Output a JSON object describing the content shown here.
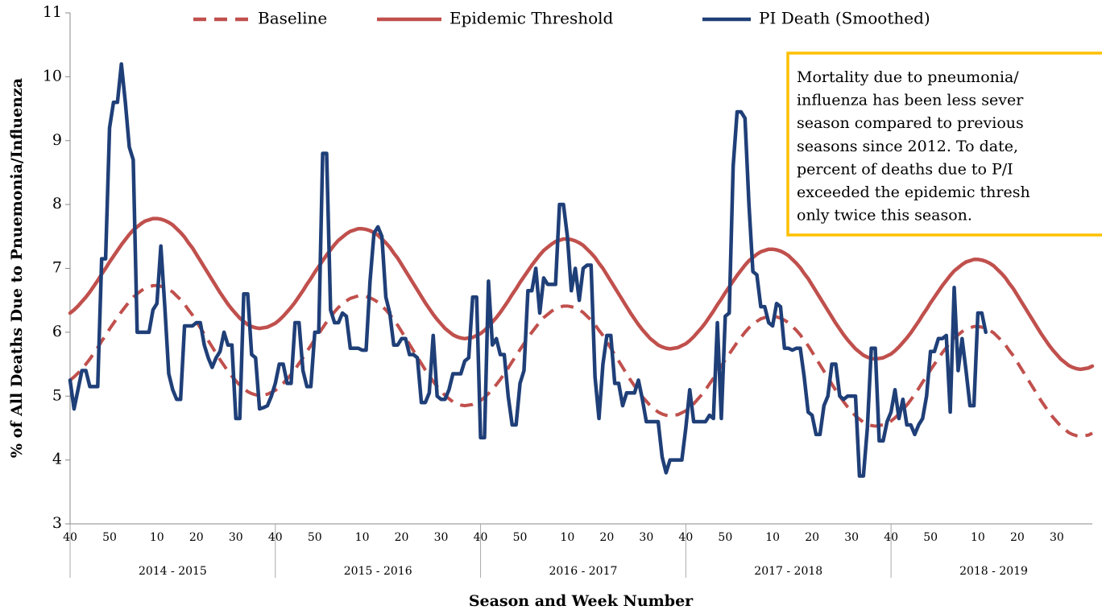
{
  "chart_data": {
    "type": "line",
    "x_label": "Season and Week Number",
    "y_label": "% of All Deaths Due to Pnuemonia/Influenza",
    "ylim": [
      3,
      11
    ],
    "yticks": [
      3,
      4,
      5,
      6,
      7,
      8,
      9,
      10,
      11
    ],
    "grid": false,
    "legend": "top",
    "annotation": [
      "Mortality due to pneumonia/",
      "influenza has been less sever",
      "season compared to previous",
      "seasons since 2012. To date,",
      "percent of deaths due to P/I",
      "exceeded the epidemic thresh",
      "only twice this season."
    ],
    "annotation_border": "#FFC000",
    "category_groups": [
      "2014 - 2015",
      "2015 - 2016",
      "2016 - 2017",
      "2017 - 2018",
      "2018 - 2019"
    ],
    "categories": [
      "40",
      null,
      null,
      null,
      null,
      null,
      null,
      null,
      null,
      null,
      "50",
      null,
      null,
      null,
      null,
      null,
      null,
      null,
      null,
      null,
      null,
      null,
      "10",
      null,
      null,
      null,
      null,
      null,
      null,
      null,
      null,
      null,
      "20",
      null,
      null,
      null,
      null,
      null,
      null,
      null,
      null,
      null,
      "30",
      null,
      null,
      null,
      null,
      null,
      null,
      null,
      null,
      null,
      "40",
      null,
      null,
      null,
      null,
      null,
      null,
      null,
      null,
      null,
      "50",
      null,
      null,
      null,
      null,
      null,
      null,
      null,
      null,
      null,
      null,
      null,
      "10",
      null,
      null,
      null,
      null,
      null,
      null,
      null,
      null,
      null,
      "20",
      null,
      null,
      null,
      null,
      null,
      null,
      null,
      null,
      null,
      "30",
      null,
      null,
      null,
      null,
      null,
      null,
      null,
      null,
      null,
      "40",
      null,
      null,
      null,
      null,
      null,
      null,
      null,
      null,
      null,
      "50",
      null,
      null,
      null,
      null,
      null,
      null,
      null,
      null,
      null,
      null,
      null,
      "10",
      null,
      null,
      null,
      null,
      null,
      null,
      null,
      null,
      null,
      "20",
      null,
      null,
      null,
      null,
      null,
      null,
      null,
      null,
      null,
      "30",
      null,
      null,
      null,
      null,
      null,
      null,
      null,
      null,
      null,
      "40",
      null,
      null,
      null,
      null,
      null,
      null,
      null,
      null,
      null,
      "50",
      null,
      null,
      null,
      null,
      null,
      null,
      null,
      null,
      null,
      null,
      null,
      "10",
      null,
      null,
      null,
      null,
      null,
      null,
      null,
      null,
      null,
      "20",
      null,
      null,
      null,
      null,
      null,
      null,
      null,
      null,
      null,
      "30",
      null,
      null,
      null,
      null,
      null,
      null,
      null,
      null,
      null,
      "40",
      null,
      null,
      null,
      null,
      null,
      null,
      null,
      null,
      null,
      "50",
      null,
      null,
      null,
      null,
      null,
      null,
      null,
      null,
      null,
      null,
      null,
      "10",
      null,
      null,
      null,
      null,
      null,
      null,
      null,
      null,
      null,
      "20",
      null,
      null,
      null,
      null,
      null,
      null,
      null,
      null,
      null,
      "30",
      null,
      null,
      null,
      null,
      null,
      null,
      null,
      null,
      null
    ],
    "series": [
      {
        "name": "Baseline",
        "color": "#C0504D",
        "dashed": true,
        "values": [
          5.25,
          5.3,
          5.36,
          5.43,
          5.5,
          5.58,
          5.67,
          5.76,
          5.86,
          5.95,
          6.05,
          6.14,
          6.23,
          6.32,
          6.4,
          6.48,
          6.55,
          6.6,
          6.65,
          6.69,
          6.71,
          6.73,
          6.73,
          6.72,
          6.7,
          6.67,
          6.63,
          6.57,
          6.51,
          6.44,
          6.35,
          6.27,
          6.17,
          6.07,
          5.97,
          5.87,
          5.77,
          5.67,
          5.57,
          5.48,
          5.39,
          5.31,
          5.24,
          5.17,
          5.12,
          5.07,
          5.04,
          5.02,
          5.01,
          5.02,
          5.03,
          5.06,
          5.09,
          5.14,
          5.2,
          5.27,
          5.34,
          5.42,
          5.51,
          5.6,
          5.7,
          5.79,
          5.89,
          5.98,
          6.07,
          6.16,
          6.24,
          6.32,
          6.39,
          6.44,
          6.49,
          6.53,
          6.55,
          6.57,
          6.57,
          6.56,
          6.54,
          6.51,
          6.47,
          6.41,
          6.35,
          6.28,
          6.19,
          6.11,
          6.01,
          5.91,
          5.81,
          5.71,
          5.61,
          5.51,
          5.41,
          5.32,
          5.23,
          5.15,
          5.08,
          5.01,
          4.96,
          4.91,
          4.88,
          4.86,
          4.85,
          4.86,
          4.87,
          4.9,
          4.93,
          4.98,
          5.04,
          5.11,
          5.18,
          5.26,
          5.35,
          5.44,
          5.54,
          5.63,
          5.73,
          5.82,
          5.91,
          6.0,
          6.08,
          6.16,
          6.23,
          6.28,
          6.33,
          6.37,
          6.39,
          6.41,
          6.41,
          6.4,
          6.38,
          6.35,
          6.31,
          6.25,
          6.19,
          6.12,
          6.03,
          5.95,
          5.85,
          5.75,
          5.65,
          5.55,
          5.45,
          5.35,
          5.25,
          5.16,
          5.07,
          4.99,
          4.92,
          4.85,
          4.8,
          4.75,
          4.72,
          4.7,
          4.69,
          4.7,
          4.71,
          4.74,
          4.77,
          4.82,
          4.88,
          4.95,
          5.02,
          5.1,
          5.19,
          5.28,
          5.38,
          5.47,
          5.57,
          5.66,
          5.75,
          5.84,
          5.92,
          6.0,
          6.07,
          6.12,
          6.17,
          6.21,
          6.23,
          6.25,
          6.25,
          6.24,
          6.22,
          6.19,
          6.15,
          6.09,
          6.03,
          5.96,
          5.87,
          5.79,
          5.69,
          5.59,
          5.49,
          5.39,
          5.29,
          5.19,
          5.09,
          5.0,
          4.91,
          4.83,
          4.76,
          4.69,
          4.64,
          4.59,
          4.56,
          4.54,
          4.53,
          4.54,
          4.55,
          4.58,
          4.61,
          4.66,
          4.72,
          4.79,
          4.86,
          4.94,
          5.03,
          5.12,
          5.22,
          5.31,
          5.41,
          5.5,
          5.59,
          5.68,
          5.76,
          5.84,
          5.91,
          5.96,
          6.01,
          6.05,
          6.07,
          6.09,
          6.09,
          6.08,
          6.06,
          6.03,
          5.99,
          5.93,
          5.87,
          5.8,
          5.71,
          5.63,
          5.53,
          5.43,
          5.33,
          5.23,
          5.13,
          5.03,
          4.93,
          4.84,
          4.75,
          4.67,
          4.6,
          4.53,
          4.48,
          4.43,
          4.4,
          4.38,
          4.37,
          4.38,
          4.39,
          4.42
        ]
      },
      {
        "name": "Epidemic Threshold",
        "color": "#C0504D",
        "dashed": false,
        "values": [
          6.3,
          6.35,
          6.41,
          6.48,
          6.55,
          6.63,
          6.72,
          6.81,
          6.91,
          7.0,
          7.1,
          7.19,
          7.28,
          7.37,
          7.45,
          7.53,
          7.6,
          7.65,
          7.7,
          7.74,
          7.76,
          7.78,
          7.78,
          7.77,
          7.75,
          7.72,
          7.68,
          7.62,
          7.56,
          7.49,
          7.4,
          7.32,
          7.22,
          7.12,
          7.02,
          6.92,
          6.82,
          6.72,
          6.62,
          6.53,
          6.44,
          6.36,
          6.29,
          6.22,
          6.17,
          6.12,
          6.09,
          6.07,
          6.06,
          6.07,
          6.08,
          6.11,
          6.14,
          6.19,
          6.25,
          6.32,
          6.39,
          6.47,
          6.56,
          6.65,
          6.75,
          6.84,
          6.94,
          7.03,
          7.12,
          7.21,
          7.29,
          7.37,
          7.44,
          7.49,
          7.54,
          7.58,
          7.6,
          7.62,
          7.62,
          7.61,
          7.59,
          7.56,
          7.52,
          7.46,
          7.4,
          7.33,
          7.24,
          7.16,
          7.06,
          6.96,
          6.86,
          6.76,
          6.66,
          6.56,
          6.46,
          6.37,
          6.28,
          6.2,
          6.13,
          6.06,
          6.01,
          5.96,
          5.93,
          5.91,
          5.9,
          5.91,
          5.92,
          5.95,
          5.98,
          6.03,
          6.09,
          6.16,
          6.23,
          6.31,
          6.4,
          6.49,
          6.59,
          6.68,
          6.78,
          6.87,
          6.96,
          7.05,
          7.13,
          7.21,
          7.28,
          7.33,
          7.38,
          7.42,
          7.44,
          7.46,
          7.46,
          7.45,
          7.43,
          7.4,
          7.36,
          7.3,
          7.24,
          7.17,
          7.08,
          7.0,
          6.9,
          6.8,
          6.7,
          6.6,
          6.5,
          6.4,
          6.3,
          6.21,
          6.12,
          6.04,
          5.97,
          5.9,
          5.85,
          5.8,
          5.77,
          5.75,
          5.74,
          5.75,
          5.76,
          5.79,
          5.82,
          5.87,
          5.93,
          6.0,
          6.07,
          6.15,
          6.24,
          6.33,
          6.43,
          6.52,
          6.62,
          6.71,
          6.8,
          6.89,
          6.97,
          7.05,
          7.12,
          7.17,
          7.22,
          7.26,
          7.28,
          7.3,
          7.3,
          7.29,
          7.27,
          7.24,
          7.2,
          7.14,
          7.08,
          7.01,
          6.92,
          6.84,
          6.74,
          6.64,
          6.54,
          6.44,
          6.34,
          6.24,
          6.14,
          6.05,
          5.96,
          5.88,
          5.81,
          5.74,
          5.69,
          5.64,
          5.61,
          5.59,
          5.58,
          5.59,
          5.6,
          5.63,
          5.66,
          5.71,
          5.77,
          5.84,
          5.91,
          5.99,
          6.08,
          6.17,
          6.27,
          6.36,
          6.46,
          6.55,
          6.64,
          6.73,
          6.81,
          6.89,
          6.96,
          7.01,
          7.06,
          7.1,
          7.12,
          7.14,
          7.14,
          7.13,
          7.11,
          7.08,
          7.04,
          6.98,
          6.92,
          6.85,
          6.76,
          6.68,
          6.58,
          6.48,
          6.38,
          6.28,
          6.18,
          6.08,
          5.98,
          5.89,
          5.8,
          5.72,
          5.65,
          5.58,
          5.53,
          5.48,
          5.45,
          5.43,
          5.42,
          5.43,
          5.44,
          5.47
        ]
      },
      {
        "name": "PI Death (Smoothed)",
        "color": "#1F3F78",
        "dashed": false,
        "values": [
          5.25,
          4.8,
          5.1,
          5.4,
          5.4,
          5.15,
          5.15,
          5.15,
          7.15,
          7.15,
          9.2,
          9.6,
          9.6,
          10.2,
          9.6,
          8.9,
          8.7,
          6.0,
          6.0,
          6.0,
          6.0,
          6.35,
          6.45,
          7.35,
          6.4,
          5.35,
          5.1,
          4.95,
          4.95,
          6.1,
          6.1,
          6.1,
          6.15,
          6.15,
          5.8,
          5.6,
          5.45,
          5.6,
          5.7,
          6.0,
          5.8,
          5.8,
          4.65,
          4.65,
          6.6,
          6.6,
          5.65,
          5.6,
          4.8,
          4.82,
          4.85,
          5.0,
          5.2,
          5.5,
          5.5,
          5.2,
          5.2,
          6.15,
          6.15,
          5.4,
          5.15,
          5.15,
          6.0,
          6.0,
          8.8,
          8.8,
          6.35,
          6.15,
          6.15,
          6.3,
          6.25,
          5.75,
          5.75,
          5.75,
          5.72,
          5.72,
          6.8,
          7.55,
          7.65,
          7.5,
          6.55,
          6.3,
          5.8,
          5.8,
          5.9,
          5.9,
          5.65,
          5.65,
          5.6,
          4.9,
          4.9,
          5.05,
          5.95,
          5.0,
          4.95,
          4.95,
          5.1,
          5.35,
          5.35,
          5.35,
          5.55,
          5.6,
          6.55,
          6.55,
          4.35,
          4.35,
          6.8,
          5.8,
          5.9,
          5.65,
          5.65,
          5.0,
          4.55,
          4.55,
          5.2,
          5.4,
          6.65,
          6.65,
          7.0,
          6.3,
          6.85,
          6.75,
          6.75,
          6.75,
          8.0,
          8.0,
          7.5,
          6.65,
          7.0,
          6.5,
          7.0,
          7.05,
          7.05,
          5.3,
          4.65,
          5.5,
          5.95,
          5.95,
          5.2,
          5.2,
          4.85,
          5.05,
          5.05,
          5.05,
          5.25,
          4.95,
          4.6,
          4.6,
          4.6,
          4.6,
          4.05,
          3.8,
          4.0,
          4.0,
          4.0,
          4.0,
          4.5,
          5.1,
          4.6,
          4.6,
          4.6,
          4.6,
          4.7,
          4.65,
          6.15,
          4.65,
          6.25,
          6.3,
          8.6,
          9.45,
          9.45,
          9.35,
          8.0,
          6.95,
          6.9,
          6.4,
          6.4,
          6.15,
          6.1,
          6.45,
          6.4,
          5.75,
          5.75,
          5.72,
          5.75,
          5.75,
          5.3,
          4.75,
          4.7,
          4.4,
          4.4,
          4.85,
          5.0,
          5.5,
          5.5,
          5.0,
          4.95,
          5.0,
          5.0,
          5.0,
          3.75,
          3.75,
          4.5,
          5.75,
          5.75,
          4.3,
          4.3,
          4.6,
          4.75,
          5.1,
          4.65,
          4.95,
          4.55,
          4.55,
          4.4,
          4.55,
          4.65,
          5.0,
          5.7,
          5.7,
          5.9,
          5.9,
          5.95,
          4.75,
          6.7,
          5.4,
          5.9,
          5.4,
          4.85,
          4.85,
          6.3,
          6.3,
          6.0,
          null,
          null,
          null,
          null,
          null,
          null,
          null,
          null,
          null,
          null,
          null,
          null,
          null,
          null,
          null,
          null,
          null,
          null,
          null,
          null,
          null,
          null,
          null,
          null,
          null,
          null,
          null
        ]
      }
    ]
  }
}
